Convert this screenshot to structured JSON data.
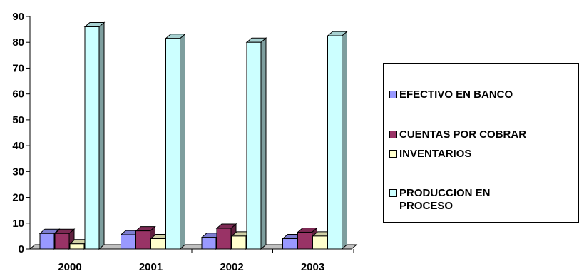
{
  "chart_data": {
    "type": "bar",
    "categories": [
      "2000",
      "2001",
      "2002",
      "2003"
    ],
    "series": [
      {
        "name": "EFECTIVO EN BANCO",
        "color": "#9999ff",
        "values": [
          6,
          5.5,
          4.5,
          4
        ]
      },
      {
        "name": "CUENTAS POR COBRAR",
        "color": "#993366",
        "values": [
          6,
          7,
          8,
          6.5
        ]
      },
      {
        "name": "INVENTARIOS",
        "color": "#ffffcc",
        "values": [
          2,
          4,
          5,
          5
        ]
      },
      {
        "name": "PRODUCCION EN PROCESO",
        "color": "#ccffff",
        "values": [
          86,
          81.5,
          80,
          82.5
        ]
      }
    ],
    "yticks": [
      "0",
      "10",
      "20",
      "30",
      "40",
      "50",
      "60",
      "70",
      "80",
      "90"
    ],
    "ylim": [
      0,
      90
    ],
    "title": "",
    "xlabel": "",
    "ylabel": "",
    "grid": false,
    "legend": "right",
    "style": "3d-clustered-column"
  }
}
